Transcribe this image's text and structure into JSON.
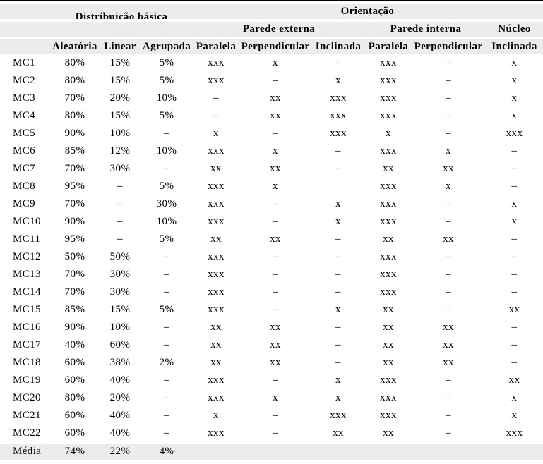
{
  "colors": {
    "band": "#ececec",
    "top_border": "#000000"
  },
  "table": {
    "header": {
      "group_distribuicao": "Distribuição básica",
      "group_orientacao": "Orientação",
      "sub_parede_externa": "Parede externa",
      "sub_parede_interna": "Parede interna",
      "sub_nucleo": "Núcleo",
      "columns": [
        "Aleatória",
        "Linear",
        "Agrupada",
        "Paralela",
        "Perpendicular",
        "Inclinada",
        "Paralela",
        "Perpendicular",
        "Inclinada"
      ]
    },
    "rows": [
      {
        "label": "MC1",
        "values": [
          "80%",
          "15%",
          "5%",
          "xxx",
          "x",
          "–",
          "xxx",
          "–",
          "x"
        ]
      },
      {
        "label": "MC2",
        "values": [
          "80%",
          "15%",
          "5%",
          "xxx",
          "–",
          "x",
          "xxx",
          "–",
          "x"
        ]
      },
      {
        "label": "MC3",
        "values": [
          "70%",
          "20%",
          "10%",
          "–",
          "xx",
          "xxx",
          "xxx",
          "–",
          "x"
        ]
      },
      {
        "label": "MC4",
        "values": [
          "80%",
          "15%",
          "5%",
          "–",
          "xx",
          "xxx",
          "xxx",
          "–",
          "x"
        ]
      },
      {
        "label": "MC5",
        "values": [
          "90%",
          "10%",
          "–",
          "x",
          "–",
          "xxx",
          "x",
          "–",
          "xxx"
        ]
      },
      {
        "label": "MC6",
        "values": [
          "85%",
          "12%",
          "10%",
          "xxx",
          "x",
          "–",
          "xxx",
          "x",
          "–"
        ]
      },
      {
        "label": "MC7",
        "values": [
          "70%",
          "30%",
          "–",
          "xx",
          "xx",
          "–",
          "xx",
          "xx",
          "–"
        ]
      },
      {
        "label": "MC8",
        "values": [
          "95%",
          "–",
          "5%",
          "xxx",
          "x",
          "",
          "xxx",
          "x",
          "–"
        ]
      },
      {
        "label": "MC9",
        "values": [
          "70%",
          "–",
          "30%",
          "xxx",
          "–",
          "x",
          "xxx",
          "–",
          "x"
        ]
      },
      {
        "label": "MC10",
        "values": [
          "90%",
          "–",
          "10%",
          "xxx",
          "–",
          "x",
          "xxx",
          "–",
          "x"
        ]
      },
      {
        "label": "MC11",
        "values": [
          "95%",
          "–",
          "5%",
          "xx",
          "xx",
          "–",
          "xx",
          "xx",
          "–"
        ]
      },
      {
        "label": "MC12",
        "values": [
          "50%",
          "50%",
          "–",
          "xxx",
          "–",
          "–",
          "xxx",
          "–",
          "–"
        ]
      },
      {
        "label": "MC13",
        "values": [
          "70%",
          "30%",
          "–",
          "xxx",
          "–",
          "–",
          "xxx",
          "–",
          "–"
        ]
      },
      {
        "label": "MC14",
        "values": [
          "70%",
          "30%",
          "–",
          "xxx",
          "–",
          "–",
          "xxx",
          "–",
          "–"
        ]
      },
      {
        "label": "MC15",
        "values": [
          "85%",
          "15%",
          "5%",
          "xxx",
          "–",
          "x",
          "xx",
          "–",
          "xx"
        ]
      },
      {
        "label": "MC16",
        "values": [
          "90%",
          "10%",
          "–",
          "xx",
          "xx",
          "–",
          "xx",
          "xx",
          "–"
        ]
      },
      {
        "label": "MC17",
        "values": [
          "40%",
          "60%",
          "–",
          "xx",
          "xx",
          "–",
          "xx",
          "xx",
          "–"
        ]
      },
      {
        "label": "MC18",
        "values": [
          "60%",
          "38%",
          "2%",
          "xx",
          "xx",
          "–",
          "xx",
          "xx",
          "–"
        ]
      },
      {
        "label": "MC19",
        "values": [
          "60%",
          "40%",
          "–",
          "xxx",
          "–",
          "x",
          "xxx",
          "–",
          "xx"
        ]
      },
      {
        "label": "MC20",
        "values": [
          "80%",
          "20%",
          "–",
          "xxx",
          "x",
          "x",
          "xxx",
          "–",
          "x"
        ]
      },
      {
        "label": "MC21",
        "values": [
          "60%",
          "40%",
          "–",
          "x",
          "–",
          "xxx",
          "xxx",
          "–",
          "x"
        ]
      },
      {
        "label": "MC22",
        "values": [
          "60%",
          "40%",
          "–",
          "xxx",
          "–",
          "xx",
          "xx",
          "–",
          "xxx"
        ]
      }
    ],
    "footer": {
      "label": "Média",
      "values": [
        "74%",
        "22%",
        "4%",
        "",
        "",
        "",
        "",
        "",
        ""
      ]
    }
  }
}
